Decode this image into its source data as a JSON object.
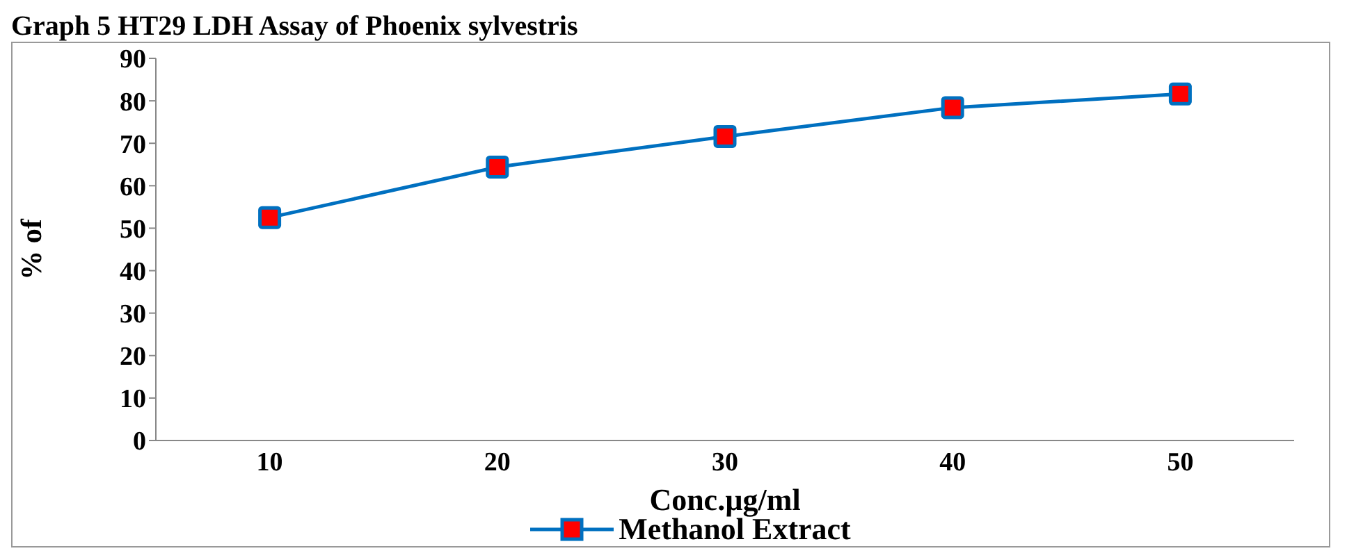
{
  "chart_data": {
    "type": "line",
    "title": "Graph 5 HT29 LDH Assay of Phoenix sylvestris",
    "xlabel": "Conc.µg/ml",
    "ylabel": "% of",
    "categories": [
      "10",
      "20",
      "30",
      "40",
      "50"
    ],
    "series": [
      {
        "name": "Methanol Extract",
        "color": "#0070c0",
        "colors": [
          "#ff0000",
          "#ff0000",
          "#ff0000",
          "#ff0000",
          "#ff0000"
        ],
        "values": [
          52.5,
          64.4,
          71.6,
          78.4,
          81.6
        ]
      }
    ],
    "ylim": [
      0,
      90
    ],
    "yticks": [
      0,
      10,
      20,
      30,
      40,
      50,
      60,
      70,
      80,
      90
    ],
    "grid": false,
    "legend": "bottom",
    "marker": "square",
    "line_style": "solid"
  }
}
